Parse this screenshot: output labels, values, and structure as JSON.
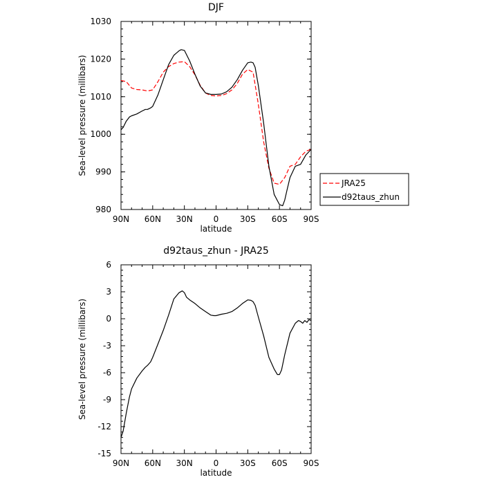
{
  "chart_data": [
    {
      "type": "line",
      "title": "DJF",
      "xlabel": "latitude",
      "ylabel": "Sea-level pressure (millibars)",
      "xlim": [
        -90,
        90
      ],
      "ylim": [
        980,
        1030
      ],
      "xticks": [
        -90,
        -60,
        -30,
        0,
        30,
        60,
        90
      ],
      "xtick_labels": [
        "90N",
        "60N",
        "30N",
        "0",
        "30S",
        "60S",
        "90S"
      ],
      "yticks": [
        980,
        990,
        1000,
        1010,
        1020,
        1030
      ],
      "ytick_labels": [
        "980",
        "990",
        "1000",
        "1010",
        "1020",
        "1030"
      ],
      "legend_position": "right",
      "series": [
        {
          "name": "JRA25",
          "color": "#ff0000",
          "dash": "dashed",
          "x": [
            -90,
            -85,
            -80,
            -75,
            -70,
            -65,
            -60,
            -55,
            -50,
            -45,
            -40,
            -35,
            -30,
            -25,
            -20,
            -15,
            -10,
            -5,
            0,
            5,
            10,
            15,
            20,
            25,
            30,
            35,
            40,
            45,
            50,
            55,
            60,
            65,
            70,
            75,
            80,
            85,
            90
          ],
          "y": [
            1014.3,
            1014.0,
            1012.3,
            1011.9,
            1011.8,
            1011.5,
            1011.8,
            1014.0,
            1016.5,
            1018.0,
            1018.8,
            1019.2,
            1019.3,
            1018.0,
            1015.8,
            1013.0,
            1011.0,
            1010.3,
            1010.2,
            1010.3,
            1010.8,
            1011.8,
            1013.5,
            1016.0,
            1017.2,
            1016.5,
            1008.0,
            998.0,
            991.0,
            987.0,
            986.7,
            988.5,
            991.5,
            992.0,
            994.0,
            995.5,
            996.0
          ]
        },
        {
          "name": "d92taus_zhun",
          "color": "#000000",
          "dash": "solid",
          "x": [
            -90,
            -88,
            -85,
            -82,
            -80,
            -75,
            -70,
            -67,
            -65,
            -62,
            -60,
            -55,
            -50,
            -45,
            -40,
            -35,
            -33,
            -30,
            -25,
            -20,
            -15,
            -10,
            -5,
            0,
            5,
            10,
            15,
            20,
            25,
            30,
            33,
            35,
            37,
            40,
            45,
            50,
            55,
            60,
            63,
            65,
            67,
            70,
            75,
            80,
            85,
            90
          ],
          "y": [
            1001.2,
            1001.8,
            1003.5,
            1004.6,
            1004.9,
            1005.4,
            1006.2,
            1006.6,
            1006.6,
            1007.0,
            1007.4,
            1010.5,
            1014.5,
            1018.5,
            1021.0,
            1022.2,
            1022.5,
            1022.3,
            1019.5,
            1016.0,
            1012.8,
            1011.0,
            1010.6,
            1010.6,
            1010.7,
            1011.3,
            1012.5,
            1014.5,
            1017.0,
            1019.0,
            1019.2,
            1019.0,
            1017.8,
            1013.0,
            1003.0,
            991.5,
            984.0,
            981.3,
            981.0,
            982.5,
            985.0,
            988.5,
            991.5,
            992.0,
            994.5,
            996.0
          ]
        }
      ]
    },
    {
      "type": "line",
      "title": "d92taus_zhun - JRA25",
      "xlabel": "latitude",
      "ylabel": "Sea-level pressure (millibars)",
      "xlim": [
        -90,
        90
      ],
      "ylim": [
        -15,
        6
      ],
      "xticks": [
        -90,
        -60,
        -30,
        0,
        30,
        60,
        90
      ],
      "xtick_labels": [
        "90N",
        "60N",
        "30N",
        "0",
        "30S",
        "60S",
        "90S"
      ],
      "yticks": [
        -15,
        -12,
        -9,
        -6,
        -3,
        0,
        3,
        6
      ],
      "ytick_labels": [
        "-15",
        "-12",
        "-9",
        "-6",
        "-3",
        "0",
        "3",
        "6"
      ],
      "series": [
        {
          "color": "#000000",
          "dash": "solid",
          "x": [
            -90,
            -88,
            -85,
            -82,
            -80,
            -75,
            -70,
            -67,
            -65,
            -62,
            -60,
            -55,
            -50,
            -45,
            -40,
            -35,
            -32,
            -30,
            -28,
            -25,
            -20,
            -15,
            -10,
            -5,
            -2,
            0,
            5,
            10,
            15,
            20,
            25,
            30,
            33,
            35,
            37,
            40,
            45,
            50,
            55,
            58,
            60,
            62,
            65,
            70,
            75,
            78,
            80,
            82,
            84,
            86,
            88,
            90
          ],
          "y": [
            -13.2,
            -12.5,
            -10.5,
            -8.7,
            -7.8,
            -6.6,
            -5.8,
            -5.4,
            -5.2,
            -4.8,
            -4.3,
            -2.8,
            -1.3,
            0.4,
            2.2,
            2.9,
            3.1,
            2.9,
            2.4,
            2.1,
            1.7,
            1.2,
            0.8,
            0.4,
            0.35,
            0.35,
            0.5,
            0.6,
            0.8,
            1.2,
            1.7,
            2.1,
            2.05,
            1.9,
            1.5,
            0.2,
            -1.9,
            -4.3,
            -5.6,
            -6.2,
            -6.2,
            -5.7,
            -4.0,
            -1.6,
            -0.5,
            -0.2,
            -0.3,
            -0.5,
            -0.2,
            -0.4,
            -0.1,
            -0.2
          ]
        }
      ]
    }
  ]
}
